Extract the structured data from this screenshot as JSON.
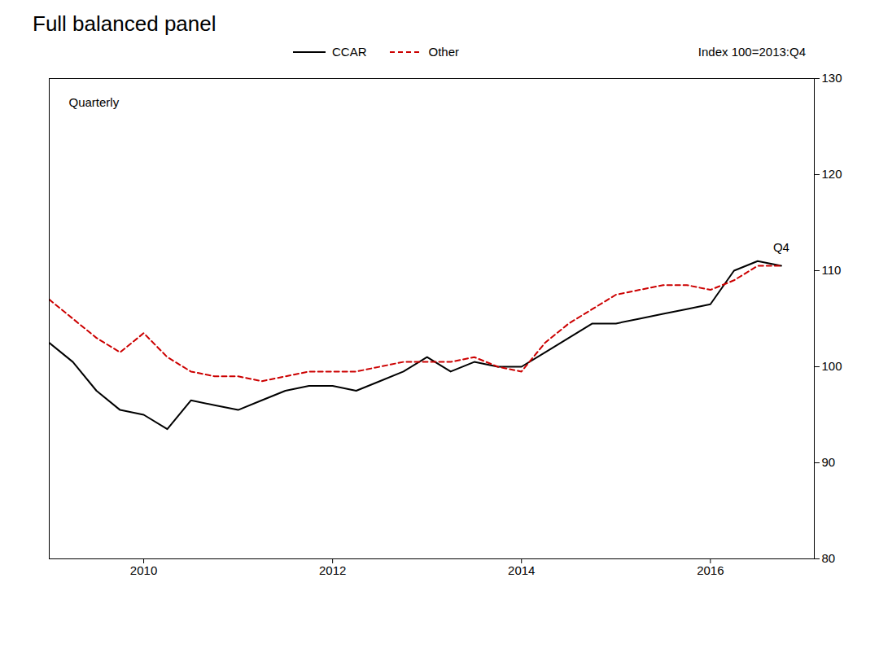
{
  "chart_data": {
    "type": "line",
    "title": "Full balanced panel",
    "ylabel": "Index 100=2013:Q4",
    "annotations": [
      "Quarterly",
      "Q4"
    ],
    "x": [
      2009.0,
      2009.25,
      2009.5,
      2009.75,
      2010.0,
      2010.25,
      2010.5,
      2010.75,
      2011.0,
      2011.25,
      2011.5,
      2011.75,
      2012.0,
      2012.25,
      2012.5,
      2012.75,
      2013.0,
      2013.25,
      2013.5,
      2013.75,
      2014.0,
      2014.25,
      2014.5,
      2014.75,
      2015.0,
      2015.25,
      2015.5,
      2015.75,
      2016.0,
      2016.25,
      2016.5,
      2016.75
    ],
    "series": [
      {
        "name": "CCAR",
        "color": "#000000",
        "line_style": "solid",
        "values": [
          102.5,
          100.5,
          97.5,
          95.5,
          95.0,
          93.5,
          96.5,
          96.0,
          95.5,
          96.5,
          97.5,
          98.0,
          98.0,
          97.5,
          98.5,
          99.5,
          101.0,
          99.5,
          100.5,
          100.0,
          100.0,
          101.5,
          103.0,
          104.5,
          104.5,
          105.0,
          105.5,
          106.0,
          106.5,
          110.0,
          111.0,
          110.5
        ]
      },
      {
        "name": "Other",
        "color": "#cc0000",
        "line_style": "dashed",
        "values": [
          107.0,
          105.0,
          103.0,
          101.5,
          103.5,
          101.0,
          99.5,
          99.0,
          99.0,
          98.5,
          99.0,
          99.5,
          99.5,
          99.5,
          100.0,
          100.5,
          100.5,
          100.5,
          101.0,
          100.0,
          99.5,
          102.5,
          104.5,
          106.0,
          107.5,
          108.0,
          108.5,
          108.5,
          108.0,
          109.0,
          110.5,
          110.5
        ]
      }
    ],
    "xlim": [
      2009.0,
      2017.1
    ],
    "xticks": [
      2010,
      2012,
      2014,
      2016
    ],
    "ylim": [
      80,
      130
    ],
    "yticks": [
      80,
      90,
      100,
      110,
      120,
      130
    ],
    "grid": false,
    "legend": "upper center"
  }
}
